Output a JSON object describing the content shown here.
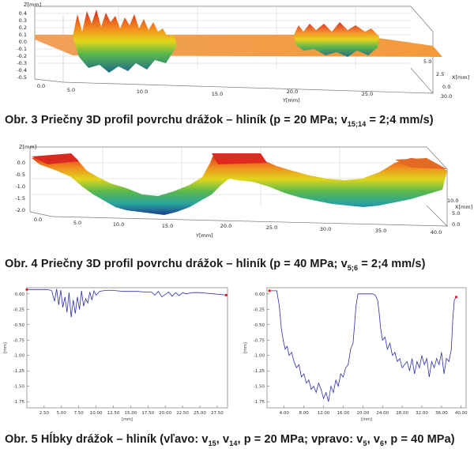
{
  "figures": {
    "fig3": {
      "caption_prefix": "Obr. 3 Priečny 3D profil povrchu drážok – hliník (p = 20 MPa; v",
      "caption_sub": "15;14",
      "caption_suffix": " = 2;4 mm/s)",
      "z_label": "Z[mm]",
      "z_ticks": [
        "0.4",
        "0.3",
        "0.2",
        "0.1",
        "0.0",
        "-0.1",
        "-0.2",
        "-0.3",
        "-0.4",
        "-0.5"
      ],
      "y_label": "Y[mm]",
      "y_ticks": [
        "0.0",
        "5.0",
        "10.0",
        "15.0",
        "20.0",
        "25.0",
        "30.0"
      ],
      "x_label": "X[mm]",
      "x_ticks": [
        "0.0",
        "2.5",
        "5.0"
      ]
    },
    "fig4": {
      "caption_prefix": "Obr. 4 Priečny 3D profil povrchu drážok – hliník (p = 40 MPa; v",
      "caption_sub": "5;6",
      "caption_suffix": " = 2;4 mm/s)",
      "z_label": "Z[mm]",
      "z_ticks": [
        "0.0",
        "-0.5",
        "-1.0",
        "-1.5",
        "-2.0"
      ],
      "y_label": "Y[mm]",
      "y_ticks": [
        "0.0",
        "5.0",
        "10.0",
        "15.0",
        "20.0",
        "25.0",
        "30.0",
        "35.0",
        "40.0"
      ],
      "x_label": "X[mm]",
      "x_ticks": [
        "0.0",
        "5.0",
        "10.0"
      ]
    },
    "fig5": {
      "caption": "Obr. 5 Hĺbky drážok – hliník (vľavo: v15, v14, p = 20 MPa; vpravo: v5, v6, p = 40 MPa)",
      "caption_parts": {
        "a": "Obr. 5 Hĺbky drážok – hliník (vľavo: v",
        "s1": "15",
        "b": ", v",
        "s2": "14",
        "c": ", p = 20 MPa; vpravo: v",
        "s3": "5",
        "d": ", v",
        "s4": "6",
        "e": ", p = 40 MPa)"
      }
    }
  },
  "chart_data": [
    {
      "type": "line",
      "ylabel": "[mm]",
      "xlabel": "[mm]",
      "y_ticks": [
        "0.00",
        "-0.25",
        "-0.50",
        "-0.75",
        "-1.00",
        "-1.25",
        "-1.50",
        "-1.75"
      ],
      "x_ticks": [
        "2.50",
        "5.00",
        "7.50",
        "10.00",
        "12.50",
        "15.00",
        "17.50",
        "20.00",
        "22.50",
        "25.00",
        "27.50"
      ],
      "xlim": [
        0,
        29
      ],
      "ylim": [
        -1.85,
        0.1
      ],
      "line_color": "#2b2fa8",
      "x": [
        0,
        1,
        2,
        3,
        3.6,
        4.0,
        4.3,
        4.6,
        4.9,
        5.2,
        5.5,
        5.8,
        6.1,
        6.4,
        6.7,
        7.0,
        7.3,
        7.6,
        7.9,
        8.2,
        8.5,
        8.8,
        9.1,
        9.4,
        9.7,
        10.0,
        10.5,
        11,
        12,
        13,
        14,
        15,
        16,
        17,
        18,
        18.5,
        19,
        19.5,
        20,
        20.5,
        21,
        21.5,
        22,
        22.5,
        23,
        23.5,
        24,
        25,
        26,
        27,
        28,
        28.8
      ],
      "values": [
        0.07,
        0.07,
        0.07,
        0.07,
        0.05,
        -0.12,
        0.08,
        -0.18,
        0.06,
        -0.22,
        -0.05,
        -0.3,
        0.02,
        -0.38,
        -0.1,
        -0.32,
        -0.05,
        -0.25,
        0.05,
        -0.2,
        -0.08,
        -0.15,
        0.03,
        -0.1,
        0.05,
        -0.02,
        0.04,
        0.05,
        0.06,
        0.05,
        0.04,
        0.04,
        0.04,
        0.03,
        0.03,
        -0.02,
        0.04,
        -0.05,
        -0.01,
        0.03,
        -0.04,
        0.02,
        -0.03,
        0.02,
        0.0,
        0.01,
        0.02,
        0.02,
        0.01,
        0.0,
        -0.01,
        -0.02
      ]
    },
    {
      "type": "line",
      "ylabel": "[mm]",
      "xlabel": "[mm]",
      "y_ticks": [
        "0.00",
        "-0.25",
        "-0.50",
        "-0.75",
        "-1.00",
        "-1.25",
        "-1.50",
        "-1.75"
      ],
      "x_ticks": [
        "4.00",
        "8.00",
        "12.00",
        "16.00",
        "20.00",
        "24.00",
        "28.00",
        "32.00",
        "36.00",
        "40.00"
      ],
      "xlim": [
        0.5,
        41
      ],
      "ylim": [
        -1.85,
        0.1
      ],
      "line_color": "#2b2fa8",
      "x": [
        1,
        2,
        2.5,
        3,
        3.4,
        3.8,
        4.2,
        4.6,
        5.0,
        5.5,
        6.0,
        6.5,
        7.0,
        7.5,
        8.0,
        8.5,
        9.0,
        9.5,
        10.0,
        10.5,
        11.0,
        11.5,
        12.0,
        12.5,
        13.0,
        13.5,
        14.0,
        14.5,
        15.0,
        15.5,
        16.0,
        16.5,
        17.0,
        17.5,
        18.0,
        18.3,
        18.6,
        19,
        20,
        21,
        22,
        22.5,
        23,
        23.3,
        23.6,
        24,
        24.5,
        25,
        25.5,
        26,
        26.5,
        27,
        27.5,
        28,
        28.5,
        29,
        29.5,
        30,
        30.5,
        31,
        31.5,
        32,
        32.5,
        33,
        33.5,
        34,
        34.5,
        35,
        35.5,
        36,
        36.5,
        37,
        37.5,
        38,
        38.3,
        38.6,
        39
      ],
      "values": [
        0.05,
        0.05,
        0.05,
        -0.2,
        -0.55,
        -0.75,
        -0.9,
        -0.85,
        -1.0,
        -0.95,
        -1.1,
        -1.2,
        -1.15,
        -1.35,
        -1.3,
        -1.45,
        -1.4,
        -1.55,
        -1.5,
        -1.6,
        -1.45,
        -1.55,
        -1.7,
        -1.6,
        -1.75,
        -1.5,
        -1.6,
        -1.4,
        -1.5,
        -1.3,
        -1.35,
        -1.2,
        -1.15,
        -0.9,
        -0.8,
        -0.5,
        -0.2,
        0.0,
        0.0,
        0.0,
        0.0,
        -0.02,
        -0.1,
        -0.3,
        -0.55,
        -0.75,
        -0.7,
        -0.9,
        -0.8,
        -1.0,
        -0.95,
        -1.1,
        -1.05,
        -1.2,
        -1.15,
        -1.1,
        -1.25,
        -1.05,
        -1.3,
        -1.1,
        -1.2,
        -1.0,
        -1.15,
        -1.05,
        -1.35,
        -1.1,
        -1.2,
        -1.05,
        -1.15,
        -0.95,
        -1.3,
        -1.05,
        -1.1,
        -0.9,
        -0.4,
        -0.1,
        -0.05
      ]
    }
  ]
}
